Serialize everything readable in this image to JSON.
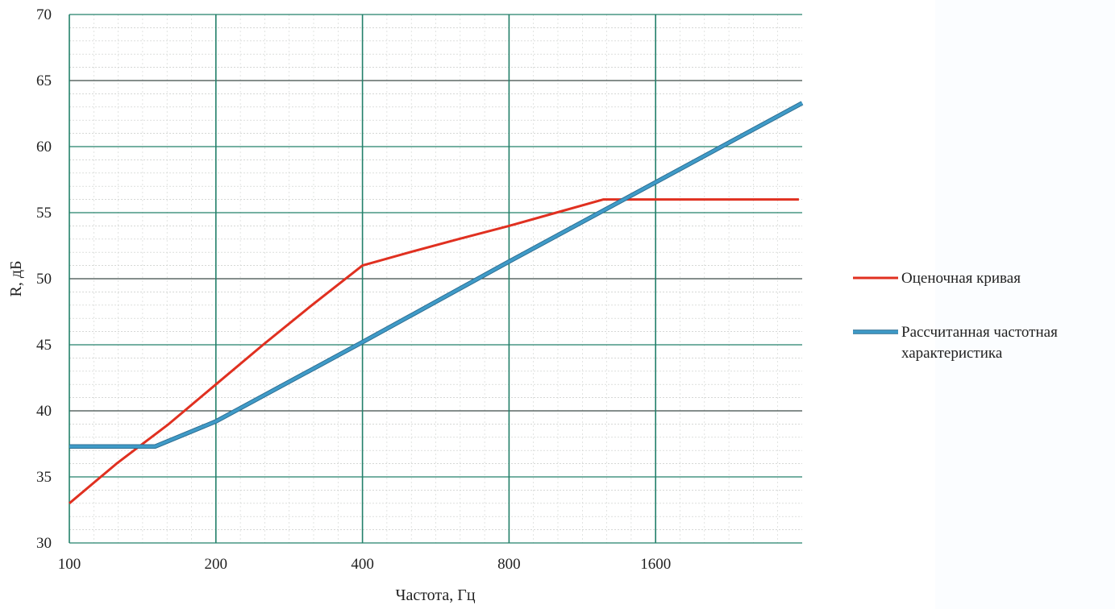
{
  "chart_data": {
    "type": "line",
    "xlabel": "Частота, Гц",
    "ylabel": "R, дБ",
    "x_scale": "log2",
    "xlim": [
      100,
      3200
    ],
    "ylim": [
      30,
      70
    ],
    "x_ticks": [
      100,
      200,
      400,
      800,
      1600
    ],
    "x_tick_labels": [
      "100",
      "200",
      "400",
      "800",
      "1600"
    ],
    "y_ticks": [
      30,
      35,
      40,
      45,
      50,
      55,
      60,
      65,
      70
    ],
    "y_tick_labels": [
      "30",
      "35",
      "40",
      "45",
      "50",
      "55",
      "60",
      "65",
      "70"
    ],
    "grid": true,
    "legend_position": "right",
    "series": [
      {
        "name": "Оценочная кривая",
        "color": "#e03020",
        "x": [
          100,
          125,
          160,
          200,
          250,
          315,
          400,
          500,
          630,
          800,
          1000,
          1250,
          1600,
          2000,
          2500,
          3150
        ],
        "y": [
          33,
          36,
          39,
          42,
          45,
          48,
          51,
          52,
          53,
          54,
          55,
          56,
          56,
          56,
          56,
          56
        ]
      },
      {
        "name": "Рассчитанная частотная характеристика",
        "color": "#3f9bc8",
        "x": [
          100,
          150,
          200,
          400,
          800,
          1600,
          3200
        ],
        "y": [
          37.3,
          37.3,
          39.2,
          45.2,
          51.3,
          57.3,
          63.3
        ]
      }
    ]
  }
}
